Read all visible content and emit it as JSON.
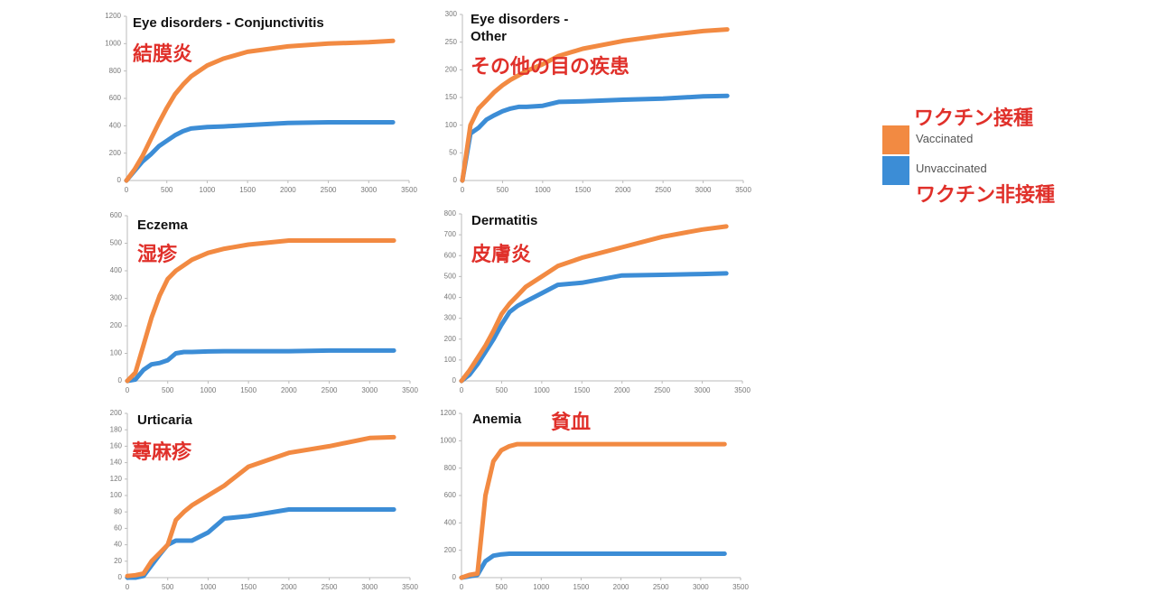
{
  "legend": [
    {
      "name": "Vaccinated",
      "label": "ワクチン接種",
      "color": "#f28a42"
    },
    {
      "name": "Unvaccinated",
      "label": "ワクチン非接種",
      "color": "#3c8dd6"
    }
  ],
  "chart_data": [
    {
      "type": "line",
      "title": "Eye disorders - Conjunctivitis",
      "subtitle": "結膜炎",
      "x": [
        0,
        100,
        200,
        300,
        400,
        500,
        600,
        700,
        800,
        1000,
        1200,
        1500,
        2000,
        2500,
        3000,
        3300
      ],
      "series": [
        {
          "color": "#f28a42",
          "values": [
            0,
            80,
            180,
            300,
            420,
            530,
            630,
            700,
            760,
            840,
            890,
            940,
            980,
            1000,
            1010,
            1020
          ]
        },
        {
          "color": "#3c8dd6",
          "values": [
            0,
            70,
            140,
            190,
            250,
            290,
            330,
            360,
            380,
            390,
            395,
            405,
            420,
            425,
            425,
            425
          ]
        }
      ],
      "xlim": [
        0,
        3500
      ],
      "xticks": [
        0,
        500,
        1000,
        1500,
        2000,
        2500,
        3000,
        3500
      ],
      "ylim": [
        0,
        1200
      ],
      "yticks": [
        0,
        200,
        400,
        600,
        800,
        1000,
        1200
      ]
    },
    {
      "type": "line",
      "title": "Eye disorders - Other",
      "subtitle": "その他の目の疾患",
      "x": [
        0,
        100,
        200,
        300,
        400,
        500,
        600,
        700,
        800,
        1000,
        1200,
        1500,
        2000,
        2500,
        3000,
        3300
      ],
      "series": [
        {
          "color": "#f28a42",
          "values": [
            0,
            100,
            130,
            145,
            160,
            172,
            182,
            190,
            198,
            210,
            225,
            238,
            252,
            262,
            270,
            273
          ]
        },
        {
          "color": "#3c8dd6",
          "values": [
            0,
            85,
            95,
            110,
            118,
            125,
            130,
            133,
            133,
            135,
            142,
            143,
            146,
            148,
            152,
            153
          ]
        }
      ],
      "xlim": [
        0,
        3500
      ],
      "xticks": [
        0,
        500,
        1000,
        1500,
        2000,
        2500,
        3000,
        3500
      ],
      "ylim": [
        0,
        300
      ],
      "yticks": [
        0,
        50,
        100,
        150,
        200,
        250,
        300
      ]
    },
    {
      "type": "line",
      "title": "Eczema",
      "subtitle": "湿疹",
      "x": [
        0,
        100,
        200,
        300,
        400,
        500,
        600,
        700,
        800,
        1000,
        1200,
        1500,
        2000,
        2500,
        3000,
        3300
      ],
      "series": [
        {
          "color": "#f28a42",
          "values": [
            0,
            30,
            130,
            230,
            310,
            370,
            400,
            420,
            440,
            465,
            480,
            495,
            510,
            510,
            510,
            510
          ]
        },
        {
          "color": "#3c8dd6",
          "values": [
            0,
            5,
            40,
            60,
            65,
            75,
            100,
            105,
            105,
            107,
            108,
            108,
            108,
            110,
            110,
            110
          ]
        }
      ],
      "xlim": [
        0,
        3500
      ],
      "xticks": [
        0,
        500,
        1000,
        1500,
        2000,
        2500,
        3000,
        3500
      ],
      "ylim": [
        0,
        600
      ],
      "yticks": [
        0,
        100,
        200,
        300,
        400,
        500,
        600
      ]
    },
    {
      "type": "line",
      "title": "Dermatitis",
      "subtitle": "皮膚炎",
      "x": [
        0,
        100,
        200,
        300,
        400,
        500,
        600,
        700,
        800,
        1000,
        1200,
        1500,
        2000,
        2500,
        3000,
        3300
      ],
      "series": [
        {
          "color": "#f28a42",
          "values": [
            0,
            50,
            110,
            170,
            240,
            320,
            370,
            410,
            450,
            500,
            550,
            590,
            640,
            690,
            725,
            740
          ]
        },
        {
          "color": "#3c8dd6",
          "values": [
            0,
            30,
            80,
            140,
            200,
            270,
            330,
            360,
            380,
            420,
            460,
            470,
            505,
            508,
            512,
            515
          ]
        }
      ],
      "xlim": [
        0,
        3500
      ],
      "xticks": [
        0,
        500,
        1000,
        1500,
        2000,
        2500,
        3000,
        3500
      ],
      "ylim": [
        0,
        800
      ],
      "yticks": [
        0,
        100,
        200,
        300,
        400,
        500,
        600,
        700,
        800
      ]
    },
    {
      "type": "line",
      "title": "Urticaria",
      "subtitle": "蕁麻疹",
      "x": [
        0,
        100,
        200,
        300,
        400,
        500,
        600,
        700,
        800,
        1000,
        1200,
        1500,
        2000,
        2500,
        3000,
        3300
      ],
      "series": [
        {
          "color": "#f28a42",
          "values": [
            2,
            3,
            5,
            20,
            30,
            40,
            70,
            80,
            88,
            100,
            112,
            135,
            152,
            160,
            170,
            171
          ]
        },
        {
          "color": "#3c8dd6",
          "values": [
            0,
            0,
            2,
            15,
            28,
            40,
            45,
            45,
            45,
            55,
            72,
            75,
            83,
            83,
            83,
            83
          ]
        }
      ],
      "xlim": [
        0,
        3500
      ],
      "xticks": [
        0,
        500,
        1000,
        1500,
        2000,
        2500,
        3000,
        3500
      ],
      "ylim": [
        0,
        200
      ],
      "yticks": [
        0,
        20,
        40,
        60,
        80,
        100,
        120,
        140,
        160,
        180,
        200
      ]
    },
    {
      "type": "line",
      "title": "Anemia",
      "subtitle": "貧血",
      "x": [
        0,
        100,
        200,
        300,
        400,
        500,
        600,
        700,
        800,
        1000,
        1200,
        1500,
        2000,
        2500,
        3000,
        3300
      ],
      "series": [
        {
          "color": "#f28a42",
          "values": [
            0,
            20,
            30,
            600,
            850,
            930,
            960,
            975,
            975,
            975,
            975,
            975,
            975,
            975,
            975,
            975
          ]
        },
        {
          "color": "#3c8dd6",
          "values": [
            0,
            10,
            20,
            120,
            160,
            170,
            175,
            175,
            175,
            175,
            175,
            175,
            175,
            175,
            175,
            175
          ]
        }
      ],
      "xlim": [
        0,
        3500
      ],
      "xticks": [
        0,
        500,
        1000,
        1500,
        2000,
        2500,
        3000,
        3500
      ],
      "ylim": [
        0,
        1200
      ],
      "yticks": [
        0,
        200,
        400,
        600,
        800,
        1000,
        1200
      ]
    }
  ]
}
